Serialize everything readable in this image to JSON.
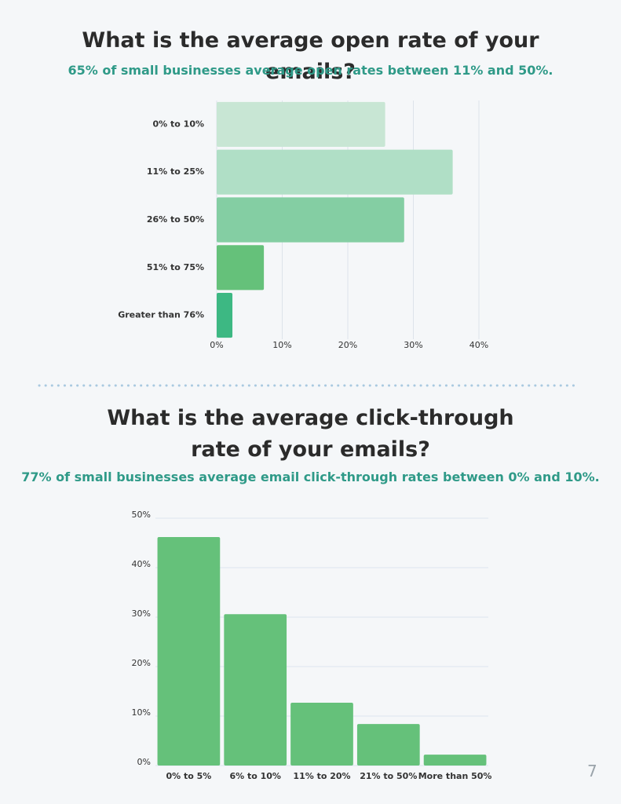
{
  "chart_data": [
    {
      "type": "bar",
      "orientation": "horizontal",
      "title": "What is the average open rate of your emails?",
      "subtitle": "65% of small businesses average open rates between 11% and 50%.",
      "categories": [
        "0% to 10%",
        "11% to 25%",
        "26% to 50%",
        "51% to 75%",
        "Greater than 76%"
      ],
      "values": [
        25.7,
        36.0,
        28.6,
        7.2,
        2.4
      ],
      "colors": [
        "#c8e6d4",
        "#b0dfc6",
        "#84cea3",
        "#65c17a",
        "#3db883"
      ],
      "xlim": [
        0,
        40
      ],
      "xticks": [
        {
          "value": 0,
          "label": "0%"
        },
        {
          "value": 10,
          "label": "10%"
        },
        {
          "value": 20,
          "label": "20%"
        },
        {
          "value": 30,
          "label": "30%"
        },
        {
          "value": 40,
          "label": "40%"
        }
      ],
      "grid": true
    },
    {
      "type": "bar",
      "orientation": "vertical",
      "title": "What is the average click-through rate of your emails?",
      "subtitle": "77% of small businesses average email click-through rates between 0% and 10%.",
      "categories": [
        "0% to 5%",
        "6% to 10%",
        "11% to 20%",
        "21% to 50%",
        "More than 50%"
      ],
      "values": [
        46.2,
        30.6,
        12.7,
        8.4,
        2.2
      ],
      "color": "#65c17a",
      "ylim": [
        0,
        50
      ],
      "yticks": [
        {
          "value": 0,
          "label": "0%"
        },
        {
          "value": 10,
          "label": "10%"
        },
        {
          "value": 20,
          "label": "20%"
        },
        {
          "value": 30,
          "label": "30%"
        },
        {
          "value": 40,
          "label": "40%"
        },
        {
          "value": 50,
          "label": "50%"
        }
      ],
      "grid": true
    }
  ],
  "page_number": 7
}
